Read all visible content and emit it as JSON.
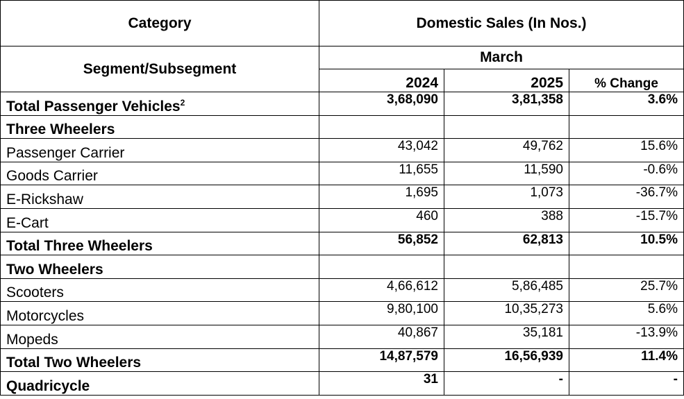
{
  "header": {
    "category": "Category",
    "domestic_sales": "Domestic Sales (In Nos.)",
    "segment": "Segment/Subsegment",
    "month": "March",
    "year1": "2024",
    "year2": "2025",
    "change": "% Change"
  },
  "rows": [
    {
      "label": "Total Passenger Vehicles",
      "sup": "2",
      "v2024": "3,68,090",
      "v2025": "3,81,358",
      "change": "3.6%",
      "bold": true
    },
    {
      "label": "Three Wheelers",
      "v2024": "",
      "v2025": "",
      "change": "",
      "bold": true
    },
    {
      "label": "Passenger Carrier",
      "v2024": "43,042",
      "v2025": "49,762",
      "change": "15.6%",
      "bold": false
    },
    {
      "label": "Goods Carrier",
      "v2024": "11,655",
      "v2025": "11,590",
      "change": "-0.6%",
      "bold": false
    },
    {
      "label": "E-Rickshaw",
      "v2024": "1,695",
      "v2025": "1,073",
      "change": "-36.7%",
      "bold": false
    },
    {
      "label": "E-Cart",
      "v2024": "460",
      "v2025": "388",
      "change": "-15.7%",
      "bold": false
    },
    {
      "label": "Total Three Wheelers",
      "v2024": "56,852",
      "v2025": "62,813",
      "change": "10.5%",
      "bold": true
    },
    {
      "label": "Two Wheelers",
      "v2024": "",
      "v2025": "",
      "change": "",
      "bold": true
    },
    {
      "label": "Scooters",
      "v2024": "4,66,612",
      "v2025": "5,86,485",
      "change": "25.7%",
      "bold": false
    },
    {
      "label": "Motorcycles",
      "v2024": "9,80,100",
      "v2025": "10,35,273",
      "change": "5.6%",
      "bold": false
    },
    {
      "label": "Mopeds",
      "v2024": "40,867",
      "v2025": "35,181",
      "change": "-13.9%",
      "bold": false
    },
    {
      "label": "Total Two Wheelers",
      "v2024": "14,87,579",
      "v2025": "16,56,939",
      "change": "11.4%",
      "bold": true
    },
    {
      "label": "Quadricycle",
      "v2024": "31",
      "v2025": "-",
      "change": "-",
      "bold": true
    }
  ]
}
